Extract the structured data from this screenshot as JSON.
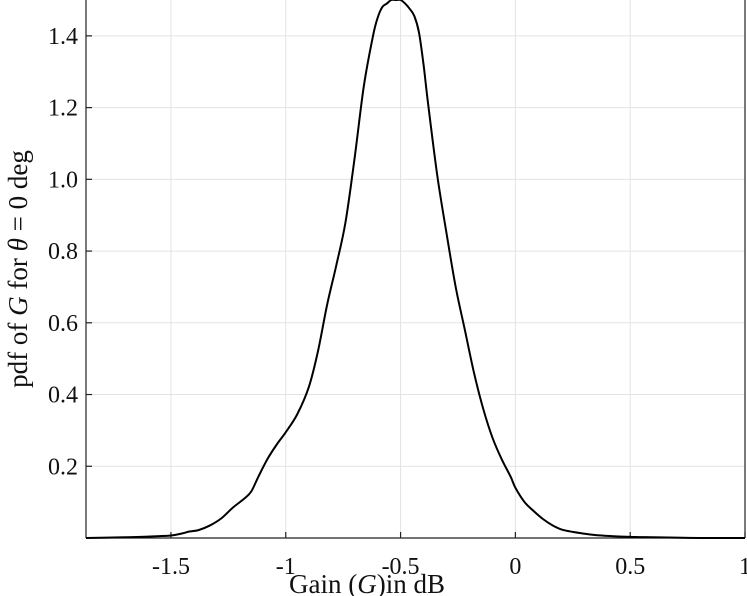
{
  "chart_data": {
    "type": "line",
    "xlabel_parts": [
      "Gain (",
      "G",
      ")in dB"
    ],
    "ylabel_parts": [
      "pdf of ",
      "G",
      " for ",
      "θ",
      " = 0 deg"
    ],
    "xlim": [
      -1.87,
      1
    ],
    "ylim": [
      0,
      1.5
    ],
    "x_ticks": [
      -1.5,
      -1,
      -0.5,
      0,
      0.5,
      1
    ],
    "x_tick_labels": [
      "-1.5",
      "-1",
      "-0.5",
      "0",
      "0.5",
      "1"
    ],
    "y_ticks": [
      0.2,
      0.4,
      0.6,
      0.8,
      1.0,
      1.2,
      1.4
    ],
    "y_tick_labels": [
      "0.2",
      "0.4",
      "0.6",
      "0.8",
      "1.0",
      "1.2",
      "1.4"
    ],
    "grid": true,
    "line_color": "#000000",
    "series": [
      {
        "x": [
          -1.87,
          -1.7,
          -1.6,
          -1.5,
          -1.45,
          -1.42,
          -1.38,
          -1.33,
          -1.28,
          -1.23,
          -1.18,
          -1.15,
          -1.12,
          -1.08,
          -1.04,
          -1.0,
          -0.95,
          -0.9,
          -0.86,
          -0.82,
          -0.78,
          -0.74,
          -0.7,
          -0.66,
          -0.62,
          -0.6,
          -0.58,
          -0.56,
          -0.54,
          -0.52,
          -0.5,
          -0.48,
          -0.46,
          -0.44,
          -0.42,
          -0.4,
          -0.38,
          -0.34,
          -0.3,
          -0.26,
          -0.22,
          -0.18,
          -0.14,
          -0.1,
          -0.06,
          -0.02,
          0.0,
          0.04,
          0.08,
          0.12,
          0.16,
          0.2,
          0.25,
          0.3,
          0.35,
          0.4,
          0.5,
          0.6,
          0.7,
          0.8,
          0.9,
          1.0
        ],
        "y": [
          0.0,
          0.002,
          0.004,
          0.007,
          0.013,
          0.018,
          0.022,
          0.035,
          0.055,
          0.085,
          0.11,
          0.13,
          0.17,
          0.22,
          0.26,
          0.295,
          0.345,
          0.42,
          0.52,
          0.65,
          0.76,
          0.88,
          1.06,
          1.26,
          1.4,
          1.45,
          1.48,
          1.49,
          1.5,
          1.5,
          1.5,
          1.49,
          1.475,
          1.455,
          1.41,
          1.32,
          1.21,
          1.01,
          0.85,
          0.7,
          0.58,
          0.46,
          0.36,
          0.28,
          0.22,
          0.17,
          0.14,
          0.1,
          0.075,
          0.053,
          0.036,
          0.024,
          0.017,
          0.012,
          0.008,
          0.006,
          0.003,
          0.002,
          0.001,
          0.0,
          0.0,
          0.0
        ]
      }
    ]
  }
}
